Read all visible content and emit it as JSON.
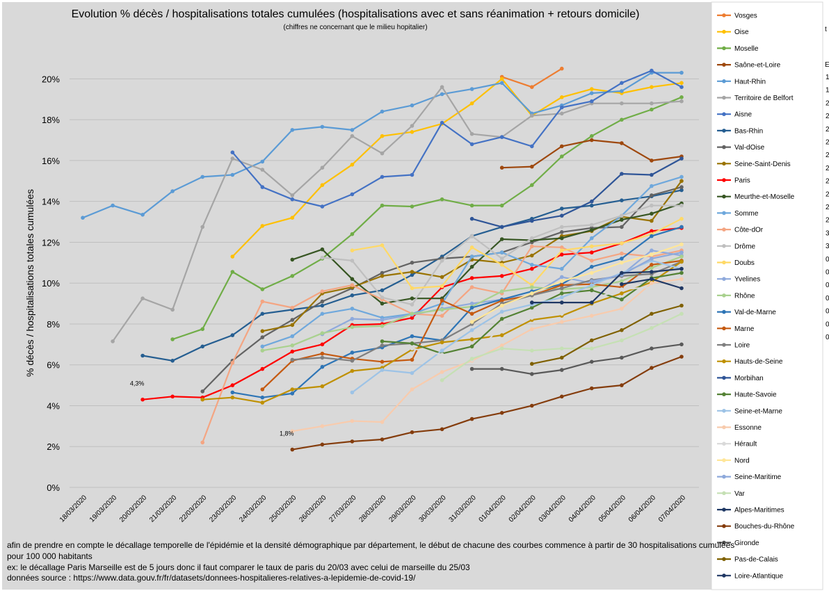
{
  "chart_data": {
    "type": "line",
    "title": "Evolution % décès / hospitalisations totales cumulées (hospitalisations avec et sans  réanimation + retours domicile)",
    "subtitle": "(chiffres ne concernant que le milieu hopitalier)",
    "ylabel": "% décès / hospitalisations totales cumulées",
    "xlabel": "",
    "ylim": [
      0,
      20
    ],
    "yticks": [
      "0%",
      "2%",
      "4%",
      "6%",
      "8%",
      "10%",
      "12%",
      "14%",
      "16%",
      "18%",
      "20%"
    ],
    "categories": [
      "18/03/2020",
      "19/03/2020",
      "20/03/2020",
      "21/03/2020",
      "22/03/2020",
      "23/03/2020",
      "24/03/2020",
      "25/03/2020",
      "26/03/2020",
      "27/03/2020",
      "28/03/2020",
      "29/03/2020",
      "30/03/2020",
      "31/03/2020",
      "01/04/2020",
      "02/04/2020",
      "03/04/2020",
      "04/04/2020",
      "05/04/2020",
      "06/04/2020",
      "07/04/2020"
    ],
    "annotations": [
      {
        "text": "4,3%",
        "x": "20/03/2020",
        "y": 4.3
      },
      {
        "text": "1,8%",
        "x": "25/03/2020",
        "y": 1.85
      }
    ],
    "series": [
      {
        "name": "Vosges",
        "color": "#ed7d31",
        "values": [
          null,
          null,
          null,
          null,
          null,
          null,
          null,
          null,
          null,
          null,
          null,
          null,
          null,
          null,
          20.1,
          19.6,
          20.5,
          null,
          null,
          null,
          null
        ]
      },
      {
        "name": "Oise",
        "color": "#ffc000",
        "values": [
          null,
          null,
          null,
          null,
          null,
          11.3,
          12.8,
          13.2,
          14.8,
          15.8,
          17.2,
          17.4,
          17.8,
          18.8,
          20.0,
          18.2,
          19.1,
          19.5,
          19.3,
          19.6,
          19.8
        ]
      },
      {
        "name": "Moselle",
        "color": "#70ad47",
        "values": [
          null,
          null,
          null,
          7.25,
          7.75,
          10.55,
          9.7,
          10.35,
          11.2,
          12.4,
          13.8,
          13.75,
          14.1,
          13.8,
          13.8,
          14.8,
          16.2,
          17.2,
          18.0,
          18.5,
          19.1
        ]
      },
      {
        "name": "Saône-et-Loire",
        "color": "#9e480e",
        "values": [
          null,
          null,
          null,
          null,
          null,
          null,
          null,
          null,
          null,
          null,
          null,
          null,
          null,
          null,
          15.65,
          15.7,
          16.7,
          17.0,
          16.85,
          16.0,
          16.2
        ]
      },
      {
        "name": "Haut-Rhin",
        "color": "#5b9bd5",
        "values": [
          13.2,
          13.8,
          13.35,
          14.5,
          15.2,
          15.3,
          15.95,
          17.5,
          17.65,
          17.5,
          18.4,
          18.7,
          19.25,
          19.5,
          19.8,
          18.3,
          18.7,
          19.3,
          19.4,
          20.3,
          20.3
        ]
      },
      {
        "name": "Territoire de Belfort",
        "color": "#a5a5a5",
        "values": [
          null,
          7.15,
          9.25,
          8.7,
          12.75,
          16.1,
          15.55,
          14.3,
          15.65,
          17.2,
          16.35,
          17.7,
          19.6,
          17.3,
          17.15,
          18.2,
          18.3,
          18.8,
          18.8,
          18.8,
          18.9
        ]
      },
      {
        "name": "Aisne",
        "color": "#4472c4",
        "values": [
          null,
          null,
          null,
          null,
          null,
          16.4,
          14.7,
          14.1,
          13.75,
          14.35,
          15.2,
          15.3,
          17.85,
          16.8,
          17.15,
          16.7,
          18.6,
          18.9,
          19.8,
          20.4,
          19.6
        ]
      },
      {
        "name": "Bas-Rhin",
        "color": "#255e91",
        "values": [
          null,
          null,
          6.45,
          6.2,
          6.9,
          7.45,
          8.5,
          8.7,
          8.9,
          9.4,
          9.65,
          10.4,
          11.3,
          12.3,
          12.75,
          13.15,
          13.65,
          13.8,
          14.05,
          14.25,
          14.55
        ]
      },
      {
        "name": "Val-dOise",
        "color": "#636363",
        "values": [
          null,
          null,
          null,
          null,
          4.7,
          6.2,
          7.35,
          8.2,
          9.1,
          9.75,
          10.5,
          11.0,
          11.2,
          11.3,
          11.5,
          12.0,
          12.5,
          12.7,
          12.75,
          14.3,
          14.7
        ]
      },
      {
        "name": "Seine-Saint-Denis",
        "color": "#997300",
        "values": [
          null,
          null,
          null,
          null,
          null,
          null,
          7.65,
          7.95,
          9.5,
          9.8,
          10.35,
          10.55,
          10.3,
          11.15,
          11.0,
          11.35,
          12.3,
          12.55,
          13.25,
          13.05,
          15.0
        ]
      },
      {
        "name": "Paris",
        "color": "#ff0000",
        "values": [
          null,
          null,
          4.3,
          4.45,
          4.4,
          5.0,
          5.8,
          6.65,
          7.0,
          7.95,
          8.0,
          8.3,
          9.8,
          10.25,
          10.35,
          10.7,
          11.4,
          11.5,
          11.95,
          12.55,
          12.7
        ]
      },
      {
        "name": "Meurthe-et-Moselle",
        "color": "#375623",
        "values": [
          null,
          null,
          null,
          null,
          null,
          null,
          null,
          11.15,
          11.65,
          10.2,
          9.0,
          9.25,
          9.25,
          10.8,
          12.15,
          12.1,
          12.2,
          12.6,
          13.1,
          13.4,
          13.9
        ]
      },
      {
        "name": "Somme",
        "color": "#6fa8dc",
        "values": [
          null,
          null,
          null,
          null,
          null,
          null,
          6.9,
          7.4,
          8.5,
          8.75,
          8.3,
          8.5,
          9.0,
          11.3,
          11.5,
          10.9,
          10.7,
          12.2,
          13.3,
          14.75,
          15.2
        ]
      },
      {
        "name": "Côte-dOr",
        "color": "#f4a582",
        "values": [
          null,
          null,
          null,
          null,
          2.2,
          6.1,
          9.1,
          8.8,
          9.6,
          9.9,
          9.2,
          8.5,
          8.4,
          9.8,
          9.5,
          11.8,
          11.75,
          11.1,
          11.45,
          11.3,
          11.6
        ]
      },
      {
        "name": "Drôme",
        "color": "#bfbfbf",
        "values": [
          null,
          null,
          null,
          null,
          null,
          null,
          null,
          null,
          11.25,
          11.1,
          9.3,
          8.95,
          11.1,
          12.3,
          11.2,
          12.2,
          12.75,
          12.85,
          13.3,
          13.8,
          13.8
        ]
      },
      {
        "name": "Doubs",
        "color": "#ffd966",
        "values": [
          null,
          null,
          null,
          null,
          null,
          null,
          null,
          null,
          null,
          11.6,
          11.85,
          9.75,
          9.85,
          11.75,
          10.9,
          9.9,
          11.6,
          11.8,
          11.95,
          12.4,
          13.15
        ]
      },
      {
        "name": "Yvelines",
        "color": "#8faadc",
        "values": [
          null,
          null,
          null,
          null,
          null,
          null,
          null,
          null,
          7.5,
          8.25,
          8.2,
          8.45,
          8.75,
          9.0,
          9.2,
          9.4,
          10.3,
          10.0,
          10.4,
          11.6,
          11.35
        ]
      },
      {
        "name": "Rhône",
        "color": "#a9d18e",
        "values": [
          null,
          null,
          null,
          null,
          null,
          null,
          6.7,
          6.95,
          7.55,
          7.85,
          7.9,
          8.5,
          8.7,
          8.85,
          9.6,
          9.8,
          9.7,
          9.8,
          10.1,
          10.75,
          11.3
        ]
      },
      {
        "name": "Val-de-Marne",
        "color": "#2e75b6",
        "values": [
          null,
          null,
          null,
          null,
          null,
          4.65,
          4.4,
          4.6,
          5.9,
          6.6,
          6.85,
          7.4,
          7.2,
          8.8,
          9.2,
          9.6,
          9.95,
          10.8,
          11.2,
          12.3,
          12.75
        ]
      },
      {
        "name": "Marne",
        "color": "#c55a11",
        "values": [
          null,
          null,
          null,
          null,
          null,
          null,
          4.8,
          6.2,
          6.55,
          6.3,
          6.15,
          6.25,
          9.15,
          8.5,
          9.15,
          9.4,
          9.9,
          9.95,
          9.8,
          10.9,
          11.1
        ]
      },
      {
        "name": "Loire",
        "color": "#7f7f7f",
        "values": [
          null,
          null,
          null,
          null,
          null,
          null,
          null,
          6.25,
          6.35,
          6.2,
          6.95,
          7.05,
          7.2,
          8.0,
          9.0,
          9.4,
          9.75,
          10.15,
          10.35,
          10.45,
          11.05
        ]
      },
      {
        "name": "Hauts-de-Seine",
        "color": "#bf9000",
        "values": [
          null,
          null,
          null,
          null,
          4.3,
          4.4,
          4.15,
          4.8,
          4.95,
          5.7,
          5.85,
          6.75,
          7.1,
          7.25,
          7.45,
          8.2,
          8.4,
          9.0,
          9.5,
          10.05,
          11.05
        ]
      },
      {
        "name": "Morbihan",
        "color": "#2f5597",
        "values": [
          null,
          null,
          null,
          null,
          null,
          null,
          null,
          null,
          null,
          null,
          null,
          null,
          null,
          13.15,
          12.75,
          13.05,
          13.3,
          14.0,
          15.35,
          15.3,
          16.1
        ]
      },
      {
        "name": "Haute-Savoie",
        "color": "#548235",
        "values": [
          null,
          null,
          null,
          null,
          null,
          null,
          null,
          null,
          null,
          null,
          7.15,
          7.05,
          6.55,
          6.9,
          8.25,
          8.8,
          9.5,
          9.65,
          9.2,
          10.25,
          10.5
        ]
      },
      {
        "name": "Seine-et-Marne",
        "color": "#9dc3e6",
        "values": [
          null,
          null,
          null,
          null,
          null,
          null,
          null,
          null,
          null,
          4.65,
          5.75,
          5.6,
          6.7,
          7.7,
          8.6,
          8.95,
          9.3,
          9.9,
          10.5,
          11.1,
          10.7
        ]
      },
      {
        "name": "Essonne",
        "color": "#f8cbad",
        "values": [
          null,
          null,
          null,
          null,
          null,
          null,
          null,
          2.75,
          3.0,
          3.25,
          3.2,
          4.8,
          5.65,
          6.2,
          6.95,
          7.75,
          8.1,
          8.4,
          8.75,
          10.0,
          10.2
        ]
      },
      {
        "name": "Hérault",
        "color": "#d9d9d9",
        "values": [
          null,
          null,
          null,
          null,
          null,
          null,
          null,
          null,
          null,
          null,
          null,
          6.8,
          6.5,
          6.25,
          8.0,
          8.3,
          8.5,
          9.2,
          9.7,
          9.8,
          10.0
        ]
      },
      {
        "name": "Nord",
        "color": "#ffe699",
        "values": [
          null,
          null,
          null,
          null,
          null,
          null,
          null,
          null,
          null,
          null,
          null,
          null,
          null,
          8.1,
          8.9,
          9.5,
          10.1,
          10.5,
          11.0,
          11.4,
          11.9
        ]
      },
      {
        "name": "Seine-Maritime",
        "color": "#8ea9db",
        "values": [
          null,
          null,
          null,
          null,
          null,
          null,
          null,
          null,
          null,
          null,
          null,
          null,
          null,
          null,
          null,
          null,
          null,
          10.1,
          10.4,
          11.2,
          11.5
        ]
      },
      {
        "name": "Var",
        "color": "#c5e0b4",
        "values": [
          null,
          null,
          null,
          null,
          null,
          null,
          null,
          null,
          null,
          null,
          null,
          null,
          5.25,
          6.3,
          6.8,
          6.7,
          6.8,
          6.8,
          7.2,
          7.8,
          8.5
        ]
      },
      {
        "name": "Alpes-Maritimes",
        "color": "#1f3864",
        "values": [
          null,
          null,
          null,
          null,
          null,
          null,
          null,
          null,
          null,
          null,
          null,
          null,
          null,
          null,
          null,
          9.05,
          9.05,
          9.05,
          10.5,
          10.55,
          10.7
        ]
      },
      {
        "name": "Bouches-du-Rhône",
        "color": "#843c0c",
        "values": [
          null,
          null,
          null,
          null,
          null,
          null,
          null,
          1.85,
          2.1,
          2.25,
          2.35,
          2.7,
          2.85,
          3.35,
          3.65,
          4.0,
          4.45,
          4.85,
          5.0,
          5.85,
          6.4
        ]
      },
      {
        "name": "Gironde",
        "color": "#595959",
        "values": [
          null,
          null,
          null,
          null,
          null,
          null,
          null,
          null,
          null,
          null,
          null,
          null,
          null,
          5.8,
          5.8,
          5.55,
          5.75,
          6.15,
          6.35,
          6.8,
          7.0
        ]
      },
      {
        "name": "Pas-de-Calais",
        "color": "#7f6000",
        "values": [
          null,
          null,
          null,
          null,
          null,
          null,
          null,
          null,
          null,
          null,
          null,
          null,
          null,
          null,
          null,
          6.05,
          6.35,
          7.2,
          7.7,
          8.5,
          8.9
        ]
      },
      {
        "name": "Loire-Atlantique",
        "color": "#203864",
        "values": [
          null,
          null,
          null,
          null,
          null,
          null,
          null,
          null,
          null,
          null,
          null,
          null,
          null,
          null,
          null,
          null,
          null,
          null,
          9.95,
          10.2,
          9.75
        ]
      }
    ]
  },
  "notes": [
    "afin de prendre en compte le décallage temporelle de l'épidémie et la densité démographique par département, le début de chacune des courbes commence à partir de 30 hospitalisations cumulées",
    "pour 100 000 habitants",
    "ex: le décallage Paris Marseille est de 5 jours donc il faut comparer le taux de paris du 20/03 avec celui de marseille du 25/03",
    "données source : https://www.data.gouv.fr/fr/datasets/donnees-hospitalieres-relatives-a-lepidemie-de-covid-19/"
  ],
  "right_edge": {
    "header": "E",
    "fragment": "t",
    "col_chars": [
      "1",
      "1",
      "2",
      "2",
      "2",
      "2",
      "2",
      "2",
      "2",
      "2",
      "2",
      "2",
      "3",
      "3",
      "0",
      "0",
      "0",
      "0",
      "0",
      "0",
      "0"
    ]
  }
}
